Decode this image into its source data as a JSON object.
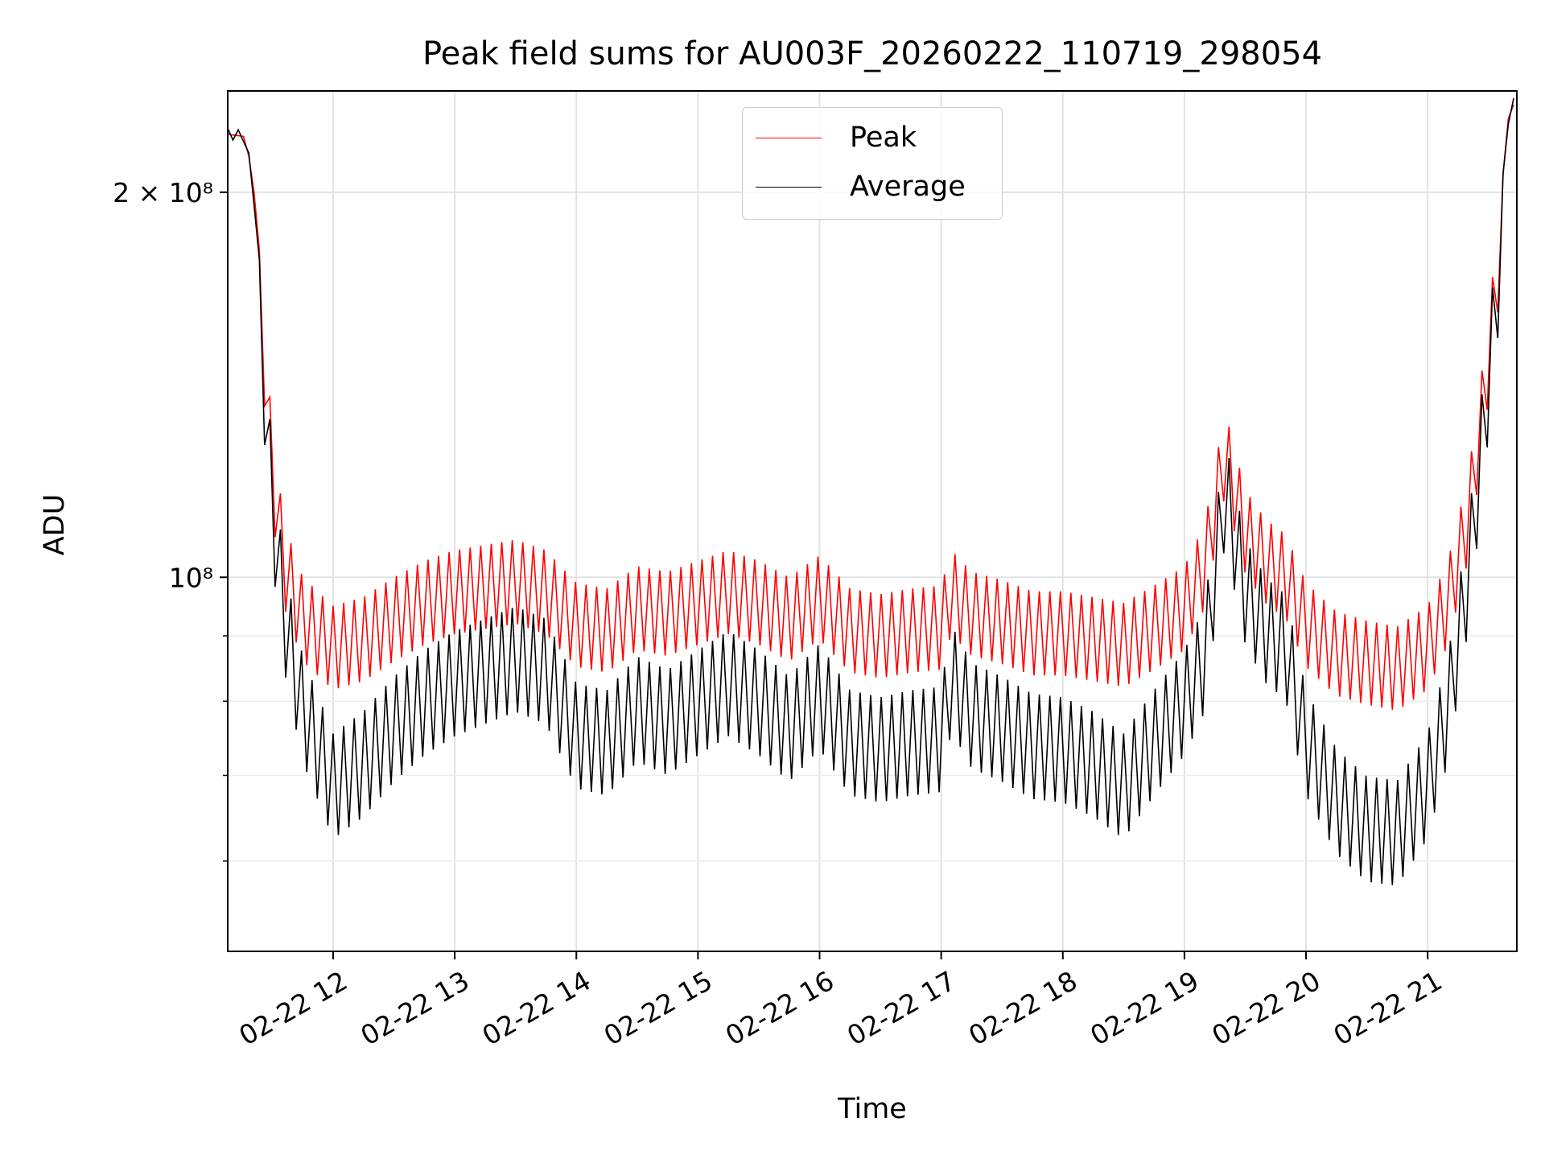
{
  "chart_data": {
    "type": "line",
    "title": "Peak field sums for AU003F_20260222_110719_298054",
    "xlabel": "Time",
    "ylabel": "ADU",
    "yscale": "log",
    "ylim": [
      51000000,
      240000000
    ],
    "xlim": [
      "02-22 11:08",
      "02-22 21:44"
    ],
    "x_ticks": [
      "02-22 12",
      "02-22 13",
      "02-22 14",
      "02-22 15",
      "02-22 16",
      "02-22 17",
      "02-22 18",
      "02-22 19",
      "02-22 20",
      "02-22 21"
    ],
    "y_ticks": [
      "2 × 10⁸",
      "10⁸"
    ],
    "grid": true,
    "legend_position": "upper center",
    "colors": {
      "Peak": "#ff0000",
      "Average": "#000000"
    },
    "series": [
      {
        "name": "Peak",
        "x": [
          "02-22 11:08",
          "02-22 11:17",
          "02-22 11:22",
          "02-22 11:26",
          "02-22 11:30",
          "02-22 11:36",
          "02-22 11:45",
          "02-22 12:00",
          "02-22 12:15",
          "02-22 12:30",
          "02-22 12:45",
          "02-22 13:00",
          "02-22 13:15",
          "02-22 13:30",
          "02-22 13:45",
          "02-22 14:00",
          "02-22 14:15",
          "02-22 14:30",
          "02-22 14:45",
          "02-22 15:00",
          "02-22 15:15",
          "02-22 15:30",
          "02-22 15:45",
          "02-22 16:00",
          "02-22 16:15",
          "02-22 16:30",
          "02-22 16:45",
          "02-22 17:00",
          "02-22 17:05",
          "02-22 17:15",
          "02-22 17:30",
          "02-22 17:45",
          "02-22 18:00",
          "02-22 18:15",
          "02-22 18:30",
          "02-22 18:45",
          "02-22 19:00",
          "02-22 19:10",
          "02-22 19:20",
          "02-22 19:30",
          "02-22 19:40",
          "02-22 19:50",
          "02-22 20:00",
          "02-22 20:15",
          "02-22 20:30",
          "02-22 20:45",
          "02-22 21:00",
          "02-22 21:10",
          "02-22 21:20",
          "02-22 21:28",
          "02-22 21:35",
          "02-22 21:40",
          "02-22 21:44"
        ],
        "values": [
          222000000,
          221000000,
          195000000,
          160000000,
          130000000,
          110000000,
          100000000,
          95000000,
          96500000,
          100000000,
          103000000,
          105000000,
          106000000,
          107000000,
          105000000,
          99000000,
          98000000,
          102000000,
          101000000,
          103000000,
          105000000,
          103000000,
          100000000,
          104000000,
          98000000,
          97000000,
          98000000,
          98500000,
          105000000,
          101000000,
          99500000,
          97500000,
          97500000,
          96500000,
          95500000,
          98500000,
          102000000,
          110000000,
          135000000,
          117000000,
          111000000,
          108000000,
          99000000,
          94000000,
          92500000,
          91500000,
          95000000,
          103000000,
          120000000,
          150000000,
          190000000,
          230000000,
          237000000
        ]
      },
      {
        "name": "Average",
        "x": [
          "02-22 11:08",
          "02-22 11:17",
          "02-22 11:22",
          "02-22 11:26",
          "02-22 11:30",
          "02-22 11:36",
          "02-22 11:45",
          "02-22 12:00",
          "02-22 12:15",
          "02-22 12:30",
          "02-22 12:45",
          "02-22 13:00",
          "02-22 13:15",
          "02-22 13:30",
          "02-22 13:45",
          "02-22 14:00",
          "02-22 14:15",
          "02-22 14:30",
          "02-22 14:45",
          "02-22 15:00",
          "02-22 15:15",
          "02-22 15:30",
          "02-22 15:45",
          "02-22 16:00",
          "02-22 16:15",
          "02-22 16:30",
          "02-22 16:45",
          "02-22 17:00",
          "02-22 17:05",
          "02-22 17:15",
          "02-22 17:30",
          "02-22 17:45",
          "02-22 18:00",
          "02-22 18:15",
          "02-22 18:30",
          "02-22 18:45",
          "02-22 19:00",
          "02-22 19:10",
          "02-22 19:20",
          "02-22 19:30",
          "02-22 19:40",
          "02-22 19:50",
          "02-22 20:00",
          "02-22 20:15",
          "02-22 20:30",
          "02-22 20:45",
          "02-22 21:00",
          "02-22 21:10",
          "02-22 21:20",
          "02-22 21:28",
          "02-22 21:35",
          "02-22 21:40",
          "02-22 21:44"
        ],
        "values": [
          220000000,
          219000000,
          190000000,
          152000000,
          122000000,
          100000000,
          85000000,
          74000000,
          77000000,
          82000000,
          86000000,
          89000000,
          91000000,
          93000000,
          91000000,
          81000000,
          80000000,
          85000000,
          83000000,
          86000000,
          89000000,
          86000000,
          82000000,
          87000000,
          80000000,
          79000000,
          80000000,
          80500000,
          90000000,
          84000000,
          82000000,
          79500000,
          79000000,
          77000000,
          74000000,
          80000000,
          86000000,
          93000000,
          126000000,
          105000000,
          98000000,
          95000000,
          80000000,
          72000000,
          68500000,
          68000000,
          74000000,
          85000000,
          108000000,
          142000000,
          185000000,
          228000000,
          235000000
        ]
      }
    ]
  }
}
